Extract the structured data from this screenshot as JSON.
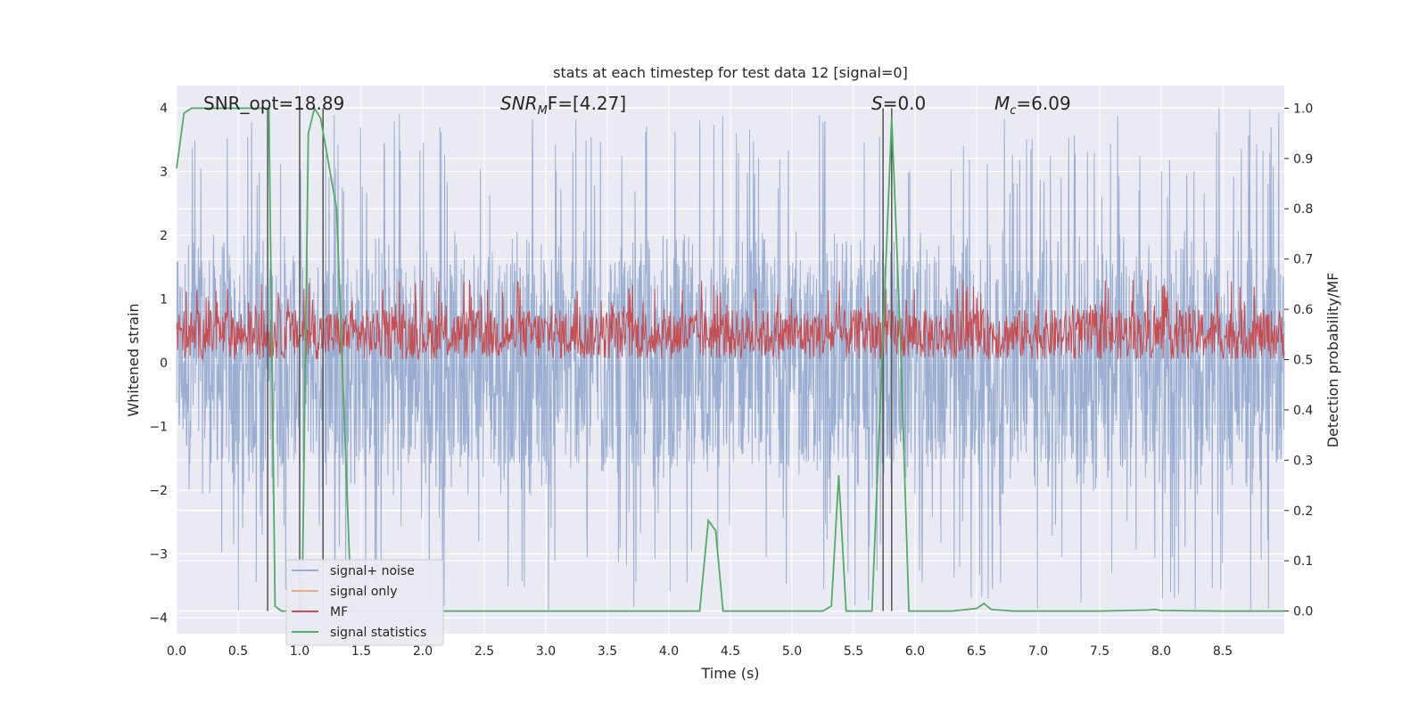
{
  "chart_data": {
    "type": "line",
    "title": "stats at each timestep for test data 12 [signal=0]",
    "xlabel": "Time (s)",
    "ylabel_left": "Whitened strain",
    "ylabel_right": "Detection probability/MF",
    "xlim": [
      0.0,
      9.0
    ],
    "ylim_left": [
      -4.25,
      4.35
    ],
    "ylim_right": [
      -0.045,
      1.045
    ],
    "grid": true,
    "legend_position": "lower-left",
    "x_ticks": [
      "0.0",
      "0.5",
      "1.0",
      "1.5",
      "2.0",
      "2.5",
      "3.0",
      "3.5",
      "4.0",
      "4.5",
      "5.0",
      "5.5",
      "6.0",
      "6.5",
      "7.0",
      "7.5",
      "8.0",
      "8.5"
    ],
    "y_left_ticks": [
      "4",
      "3",
      "2",
      "1",
      "0",
      "−1",
      "−2",
      "−3",
      "−4"
    ],
    "y_left_values": [
      4,
      3,
      2,
      1,
      0,
      -1,
      -2,
      -3,
      -4
    ],
    "y_right_ticks": [
      "1.0",
      "0.9",
      "0.8",
      "0.7",
      "0.6",
      "0.5",
      "0.4",
      "0.3",
      "0.2",
      "0.1",
      "0.0"
    ],
    "y_right_values": [
      1.0,
      0.9,
      0.8,
      0.7,
      0.6,
      0.5,
      0.4,
      0.3,
      0.2,
      0.1,
      0.0
    ],
    "annotations": {
      "snr_opt": "SNR_opt=18.89",
      "snr_mf_italic": "SNR",
      "snr_mf_sub": "M",
      "snr_mf_rest": "F=[4.27]",
      "s_italic": "S",
      "s_rest": "=0.0",
      "mc_italic": "M",
      "mc_sub": "c",
      "mc_rest": "=6.09"
    },
    "series": [
      {
        "name": "signal+ noise",
        "color": "#4c72b0",
        "noise_band": {
          "lower_typical": -1.6,
          "upper_typical": 1.6,
          "max": 4.0,
          "min": -3.9
        }
      },
      {
        "name": "signal only",
        "color": "#dd8452",
        "values": []
      },
      {
        "name": "MF",
        "color": "#c44e52",
        "band": {
          "lower": 0.5,
          "upper_typical": 0.6,
          "max": 0.66
        }
      },
      {
        "name": "signal statistics",
        "color": "#55a868",
        "x": [
          0.0,
          0.06,
          0.12,
          0.3,
          0.5,
          0.72,
          0.75,
          0.8,
          0.85,
          0.9,
          1.0,
          1.02,
          1.07,
          1.12,
          1.17,
          1.3,
          1.42,
          1.45,
          1.6,
          2.0,
          3.0,
          4.0,
          4.25,
          4.32,
          4.38,
          4.44,
          4.5,
          4.8,
          5.0,
          5.25,
          5.32,
          5.38,
          5.44,
          5.5,
          5.65,
          5.74,
          5.81,
          5.88,
          5.95,
          6.0,
          6.3,
          6.5,
          6.56,
          6.62,
          6.8,
          7.5,
          7.9,
          7.95,
          8.0,
          8.5,
          9.0
        ],
        "values": [
          0.88,
          0.99,
          1.0,
          1.0,
          1.0,
          1.0,
          1.0,
          0.01,
          0.0,
          0.0,
          0.0,
          0.02,
          0.95,
          1.0,
          0.98,
          0.8,
          0.0,
          0.0,
          0.0,
          0.0,
          0.0,
          0.0,
          0.0,
          0.18,
          0.16,
          0.0,
          0.0,
          0.0,
          0.0,
          0.0,
          0.01,
          0.27,
          0.0,
          0.0,
          0.0,
          0.55,
          0.98,
          0.55,
          0.0,
          0.0,
          0.0,
          0.005,
          0.015,
          0.003,
          0.0,
          0.0,
          0.002,
          0.003,
          0.001,
          0.0,
          0.0
        ]
      }
    ],
    "vertical_markers": [
      0.74,
      1.0,
      1.19,
      5.74,
      5.81
    ],
    "marker_color": "#555555",
    "background_color": "#eaeaf2",
    "grid_color": "#ffffff"
  }
}
